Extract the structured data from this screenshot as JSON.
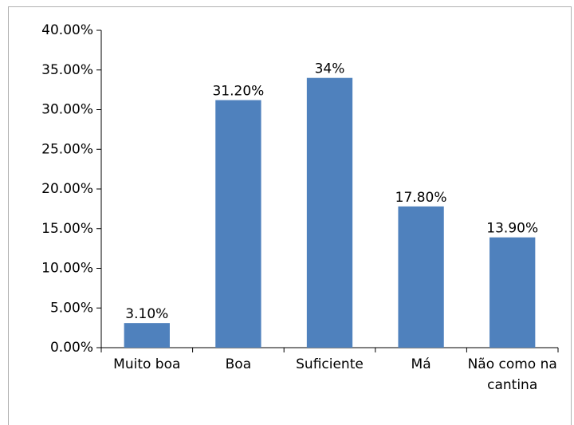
{
  "chart_data": {
    "type": "bar",
    "categories": [
      "Muito boa",
      "Boa",
      "Suficiente",
      "Má",
      "Não como na cantina"
    ],
    "values": [
      3.1,
      31.2,
      34,
      17.8,
      13.9
    ],
    "value_labels": [
      "3.10%",
      "31.20%",
      "34%",
      "17.80%",
      "13.90%"
    ],
    "color": "#4f81bd",
    "ylim": [
      0,
      40
    ],
    "yticks": [
      {
        "value": 0,
        "label": "0.00%"
      },
      {
        "value": 5,
        "label": "5.00%"
      },
      {
        "value": 10,
        "label": "10.00%"
      },
      {
        "value": 15,
        "label": "15.00%"
      },
      {
        "value": 20,
        "label": "20.00%"
      },
      {
        "value": 25,
        "label": "25.00%"
      },
      {
        "value": 30,
        "label": "30.00%"
      },
      {
        "value": 35,
        "label": "35.00%"
      },
      {
        "value": 40,
        "label": "40.00%"
      }
    ]
  }
}
